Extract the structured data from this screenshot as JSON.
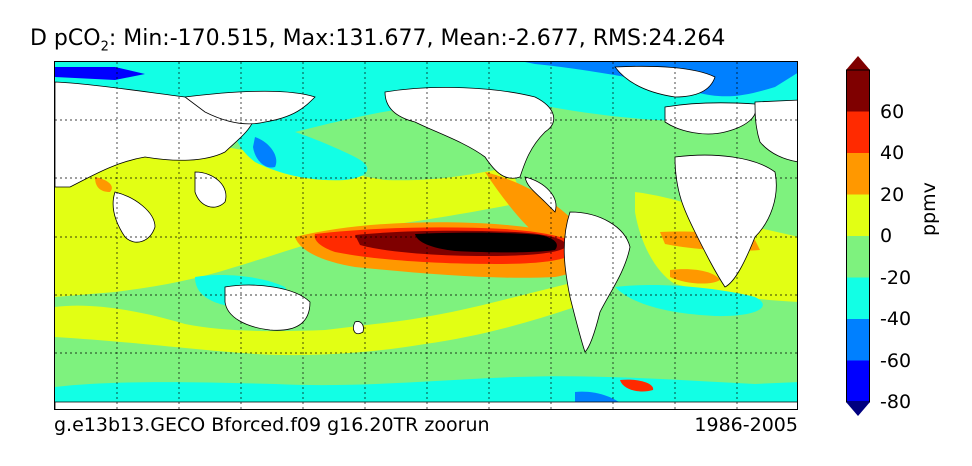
{
  "title": {
    "prefix": "D pCO",
    "subscript": "2",
    "suffix": ": Min:-170.515, Max:131.677, Mean:-2.677, RMS:24.264"
  },
  "footer": {
    "left": "g.e13b13.GECO Bforced.f09 g16.20TR zoorun",
    "right": "1986-2005"
  },
  "colorbar": {
    "unit": "ppmv",
    "tick_labels": [
      "60",
      "40",
      "20",
      "0",
      "-20",
      "-40",
      "-60",
      "-80"
    ],
    "levels": [
      {
        "range": "above 80",
        "color": "#7f0000"
      },
      {
        "range": "60 to 80",
        "color": "#7f0000"
      },
      {
        "range": "40 to 60",
        "color": "#ff2a00"
      },
      {
        "range": "20 to 40",
        "color": "#ff9800"
      },
      {
        "range": "0 to 20",
        "color": "#e2ff14"
      },
      {
        "range": "-20 to 0",
        "color": "#7ef27e"
      },
      {
        "range": "-40 to -20",
        "color": "#12ffe5"
      },
      {
        "range": "-60 to -40",
        "color": "#0080ff"
      },
      {
        "range": "-80 to -60",
        "color": "#0000ff"
      },
      {
        "range": "below -80",
        "color": "#00007f"
      }
    ]
  },
  "map": {
    "land_color": "#ffffff",
    "gridlines": "dotted"
  }
}
